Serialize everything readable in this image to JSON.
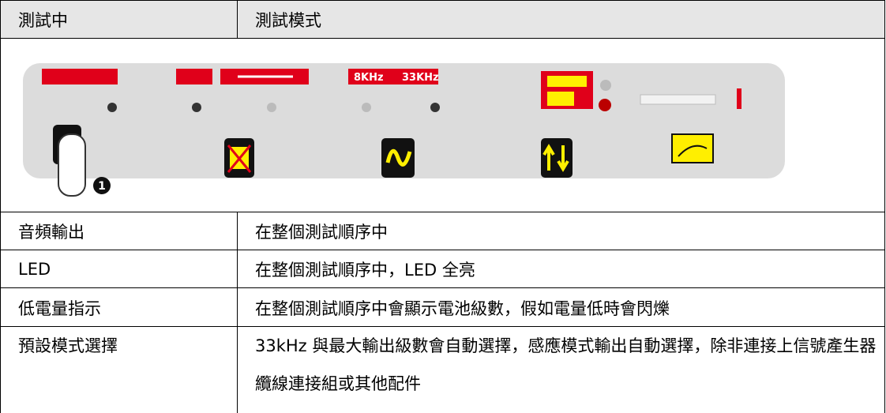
{
  "header": {
    "col1": "測試中",
    "col2": "測試模式"
  },
  "panel": {
    "freq_low": "8KHz",
    "freq_high": "33KHz",
    "step": "1"
  },
  "table": {
    "rows": [
      [
        "音頻輸出",
        "在整個測試順序中"
      ],
      [
        "LED",
        "在整個測試順序中，LED 全亮"
      ],
      [
        "低電量指示",
        "在整個測試順序中會顯示電池級數，假如電量低時會閃爍"
      ],
      [
        "預設模式選擇",
        "33kHz 與最大輸出級數會自動選擇，感應模式輸出自動選擇，除非連接上信號產生器纜線連接組或其他配件"
      ]
    ]
  }
}
